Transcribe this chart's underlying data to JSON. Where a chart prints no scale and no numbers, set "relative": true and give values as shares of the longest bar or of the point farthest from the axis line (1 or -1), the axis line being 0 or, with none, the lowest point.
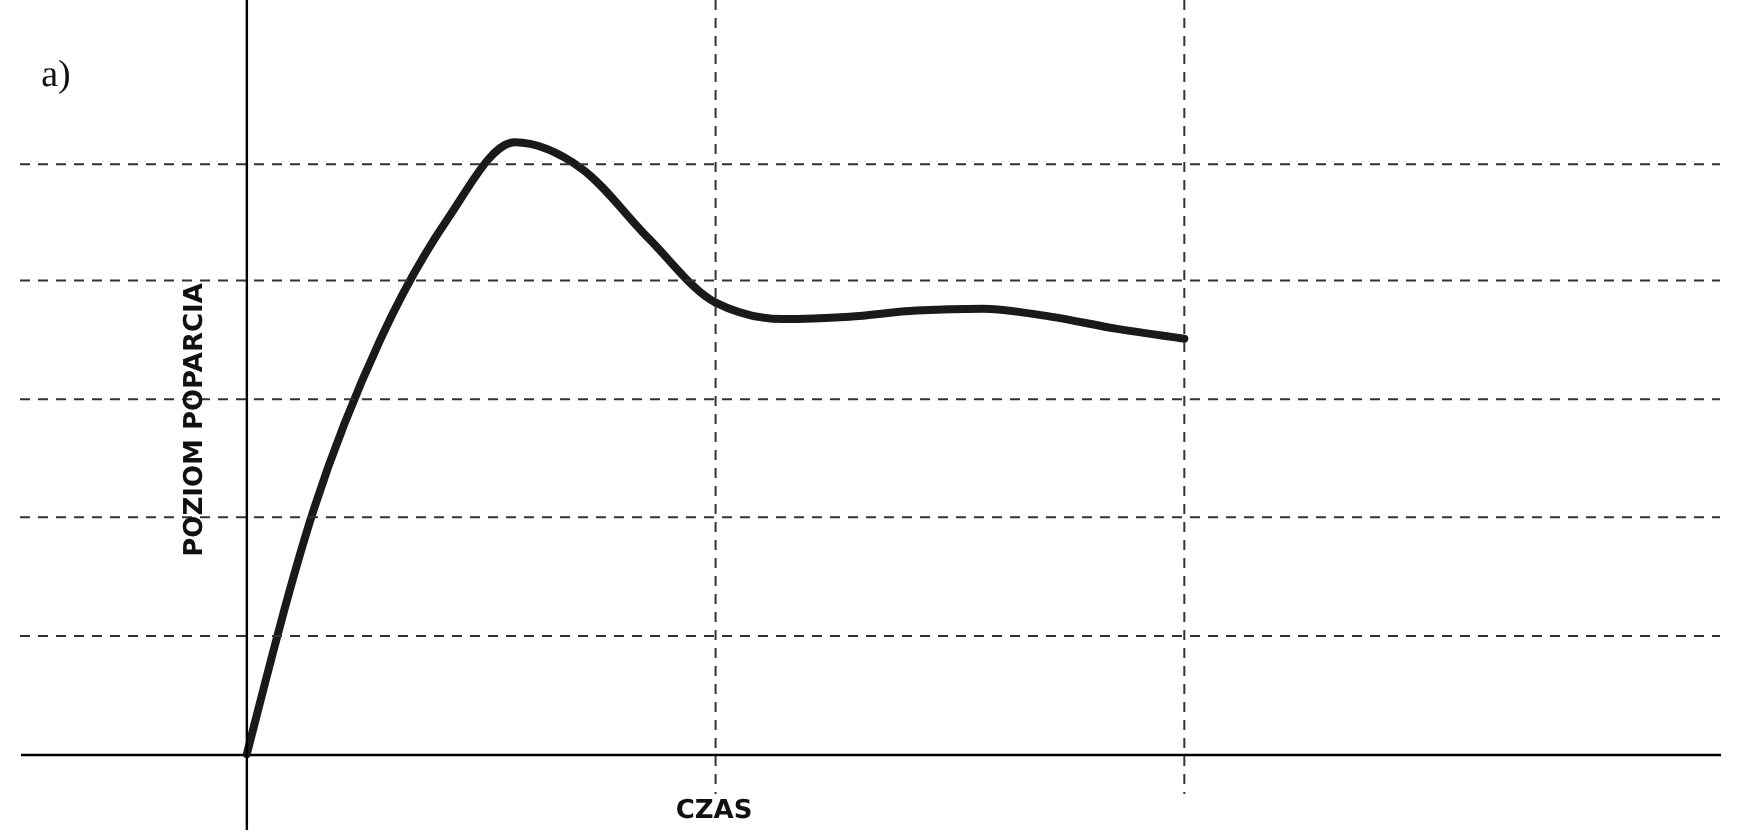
{
  "chart_data": {
    "type": "line",
    "relative": true,
    "xlabel": "CZAS",
    "ylabel": "POZIOM POPARCIA",
    "annotations": [
      "a)"
    ],
    "categories": [
      null,
      null,
      null,
      null,
      null,
      null,
      null,
      null,
      null,
      null,
      null,
      null,
      null,
      null,
      null,
      null,
      null,
      null,
      null,
      null,
      null,
      null,
      null
    ],
    "series": [
      {
        "color": "#1a1a1a",
        "values": [
          0,
          0.4,
          0.679,
          0.875,
          1.0,
          0.957,
          0.843,
          0.738,
          0.711,
          0.715,
          0.725,
          0.728,
          0.715,
          0.695,
          0.679,
          null,
          null,
          null,
          null,
          null,
          null,
          null,
          null
        ]
      }
    ],
    "ref_lines": [
      {
        "axis": "y",
        "value": 0.193,
        "color": "#333333",
        "line_style": "dashed"
      },
      {
        "axis": "y",
        "value": 0.387,
        "color": "#333333",
        "line_style": "dashed"
      },
      {
        "axis": "y",
        "value": 0.58,
        "color": "#333333",
        "line_style": "dashed"
      },
      {
        "axis": "y",
        "value": 0.774,
        "color": "#333333",
        "line_style": "dashed"
      },
      {
        "axis": "y",
        "value": 0.964,
        "color": "#333333",
        "line_style": "dashed"
      }
    ],
    "line_style": "solid",
    "marker": "none"
  }
}
